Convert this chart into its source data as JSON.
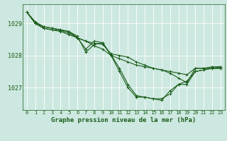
{
  "bg_color": "#cde8e0",
  "grid_color": "#b0d8cc",
  "plot_bg_color": "#cde8e0",
  "line_color": "#1a5c1a",
  "title": "Graphe pression niveau de la mer (hPa)",
  "xlim": [
    -0.5,
    23.5
  ],
  "ylim": [
    1026.3,
    1029.6
  ],
  "yticks": [
    1027,
    1028,
    1029
  ],
  "xticks": [
    0,
    1,
    2,
    3,
    4,
    5,
    6,
    7,
    8,
    9,
    10,
    11,
    12,
    13,
    14,
    15,
    16,
    17,
    18,
    19,
    20,
    21,
    22,
    23
  ],
  "series": [
    [
      1029.35,
      1029.0,
      1028.9,
      1028.85,
      1028.8,
      1028.75,
      1028.6,
      1028.1,
      1028.35,
      1028.4,
      1028.0,
      1027.5,
      1027.0,
      1026.7,
      1026.7,
      1026.65,
      1026.6,
      1026.9,
      1027.1,
      1027.1,
      1027.5,
      1027.55,
      1027.6,
      1027.6
    ],
    [
      1029.35,
      1029.0,
      1028.85,
      1028.8,
      1028.75,
      1028.65,
      1028.55,
      1028.45,
      1028.3,
      1028.2,
      1028.0,
      1027.9,
      1027.8,
      1027.7,
      1027.65,
      1027.6,
      1027.55,
      1027.5,
      1027.45,
      1027.4,
      1027.6,
      1027.6,
      1027.65,
      1027.65
    ],
    [
      1029.35,
      1029.0,
      1028.85,
      1028.8,
      1028.78,
      1028.7,
      1028.55,
      1028.45,
      1028.38,
      1028.35,
      1028.05,
      1028.0,
      1027.95,
      1027.8,
      1027.7,
      1027.6,
      1027.55,
      1027.45,
      1027.3,
      1027.15,
      1027.6,
      1027.6,
      1027.6,
      1027.65
    ],
    [
      1029.35,
      1029.05,
      1028.9,
      1028.85,
      1028.8,
      1028.75,
      1028.55,
      1028.2,
      1028.45,
      1028.4,
      1028.02,
      1027.6,
      1027.1,
      1026.75,
      1026.7,
      1026.65,
      1026.65,
      1026.8,
      1027.1,
      1027.2,
      1027.5,
      1027.55,
      1027.6,
      1027.6
    ]
  ],
  "marker": "+",
  "markersize": 3,
  "linewidth": 0.8,
  "title_fontsize": 6.5,
  "tick_fontsize": 5.0,
  "ytick_fontsize": 6.0
}
